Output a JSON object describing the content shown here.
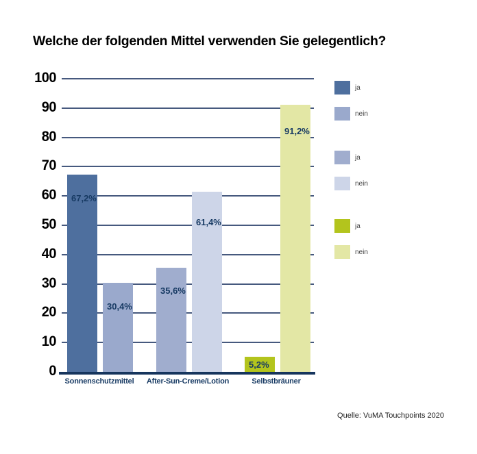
{
  "title": "Welche der folgenden Mittel verwenden Sie gelegentlich?",
  "source": "Quelle: VuMA Touchpoints 2020",
  "chart_data": {
    "type": "bar",
    "title": "Welche der folgenden Mittel verwenden Sie gelegentlich?",
    "categories": [
      "Sonnenschutzmittel",
      "After-Sun-Creme/Lotion",
      "Selbstbräuner"
    ],
    "series": [
      {
        "name": "ja",
        "values": [
          67.2,
          35.6,
          5.2
        ],
        "labels": [
          "67,2%",
          "35,6%",
          "5,2%"
        ],
        "colors": [
          "#4e6f9e",
          "#a0adce",
          "#b3c41d"
        ]
      },
      {
        "name": "nein",
        "values": [
          30.4,
          61.4,
          91.2
        ],
        "labels": [
          "30,4%",
          "61,4%",
          "91,2%"
        ],
        "colors": [
          "#9aa9cc",
          "#cdd5e8",
          "#e3e7a5"
        ]
      }
    ],
    "xlabel": "",
    "ylabel": "",
    "ylim": [
      0,
      100
    ],
    "yticks": [
      0,
      10,
      20,
      30,
      40,
      50,
      60,
      70,
      80,
      90,
      100
    ],
    "grid": true,
    "legend_position": "right",
    "legend": [
      {
        "swatch_color": "#4e6f9e",
        "label": "ja"
      },
      {
        "swatch_color": "#9aa9cc",
        "label": "nein"
      },
      {
        "swatch_color": "#a0adce",
        "label": "ja"
      },
      {
        "swatch_color": "#cdd5e8",
        "label": "nein"
      },
      {
        "swatch_color": "#b3c41d",
        "label": "ja"
      },
      {
        "swatch_color": "#e3e7a5",
        "label": "nein"
      }
    ],
    "colors": {
      "gridline": "#46597e",
      "axis": "#16355d",
      "value_label": "#173a63",
      "category_label": "#173a63",
      "tick_label": "#000000"
    }
  }
}
